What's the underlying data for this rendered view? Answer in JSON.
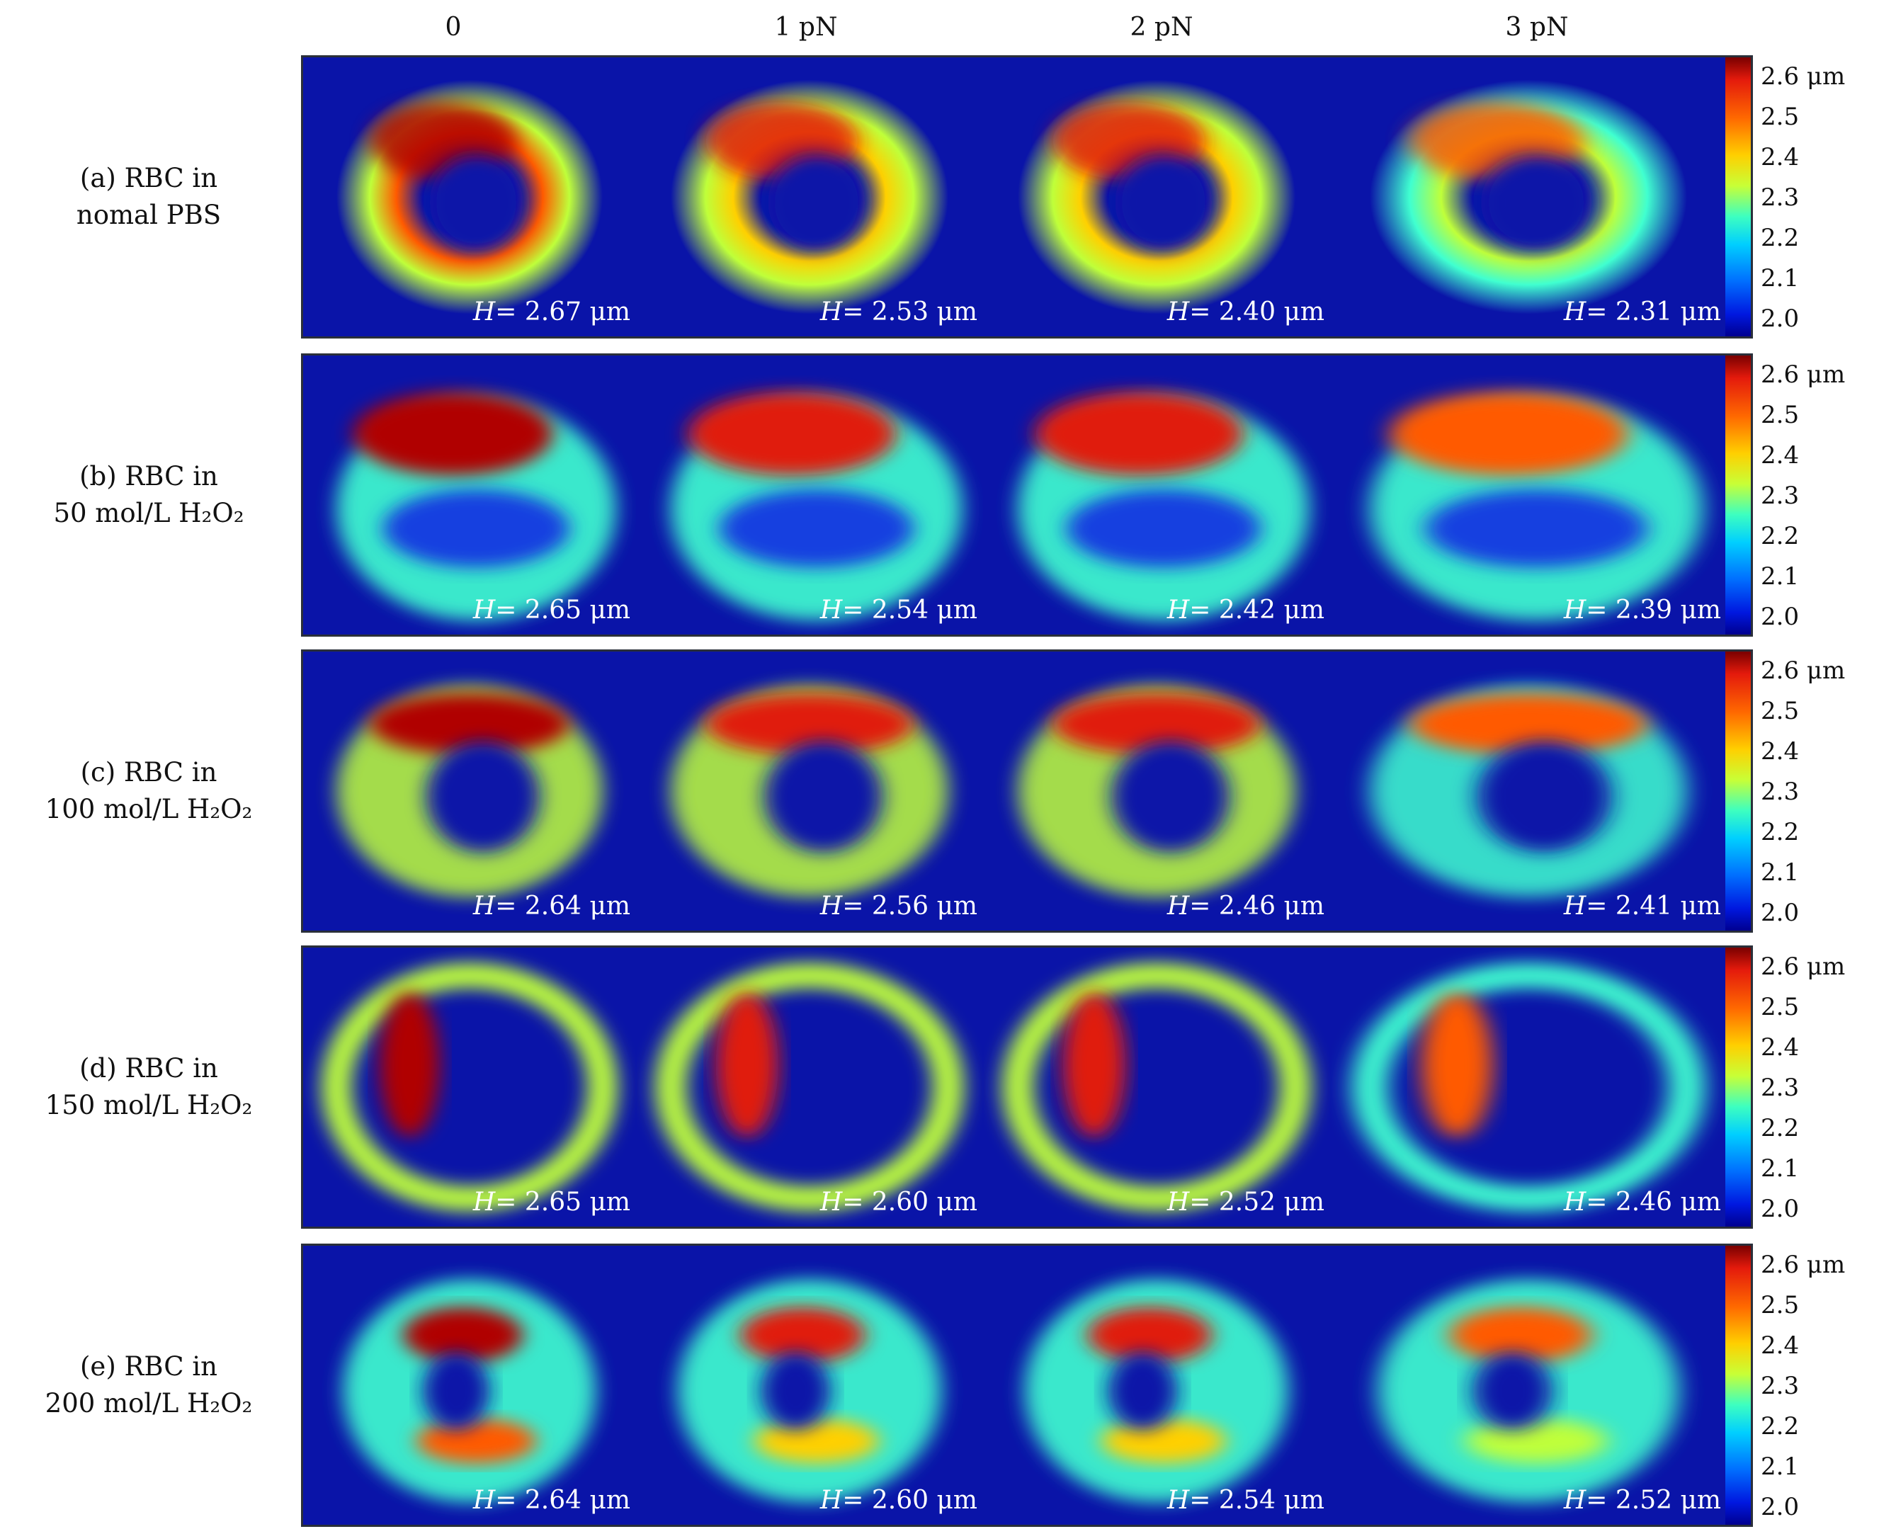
{
  "columns": [
    "0",
    "1 pN",
    "2 pN",
    "3 pN"
  ],
  "rows": [
    {
      "label_line1": "(a) RBC in",
      "label_line2": "nomal PBS",
      "h_values": [
        "= 2.67 μm",
        "= 2.53 μm",
        "= 2.40 μm",
        "= 2.31 μm"
      ]
    },
    {
      "label_line1": "(b) RBC in",
      "label_line2": "50 mol/L H₂O₂",
      "h_values": [
        "= 2.65 μm",
        "= 2.54 μm",
        "= 2.42 μm",
        "= 2.39 μm"
      ]
    },
    {
      "label_line1": "(c) RBC in",
      "label_line2": "100 mol/L H₂O₂",
      "h_values": [
        "= 2.64 μm",
        "= 2.56 μm",
        "= 2.46 μm",
        "= 2.41 μm"
      ]
    },
    {
      "label_line1": "(d) RBC in",
      "label_line2": "150 mol/L H₂O₂",
      "h_values": [
        "= 2.65 μm",
        "= 2.60 μm",
        "= 2.52 μm",
        "= 2.46 μm"
      ]
    },
    {
      "label_line1": "(e) RBC in",
      "label_line2": "200 mol/L H₂O₂",
      "h_values": [
        "= 2.64 μm",
        "= 2.60 μm",
        "= 2.54 μm",
        "= 2.52 μm"
      ]
    }
  ],
  "h_symbol": "H",
  "colorbar": {
    "ticks": [
      "2.6 μm",
      "2.5",
      "2.4",
      "2.3",
      "2.2",
      "2.1",
      "2.0"
    ],
    "range": [
      2.0,
      2.6
    ],
    "colors": {
      "background": "#0a14a8",
      "low": "#000090",
      "high": "#7a0000"
    }
  }
}
